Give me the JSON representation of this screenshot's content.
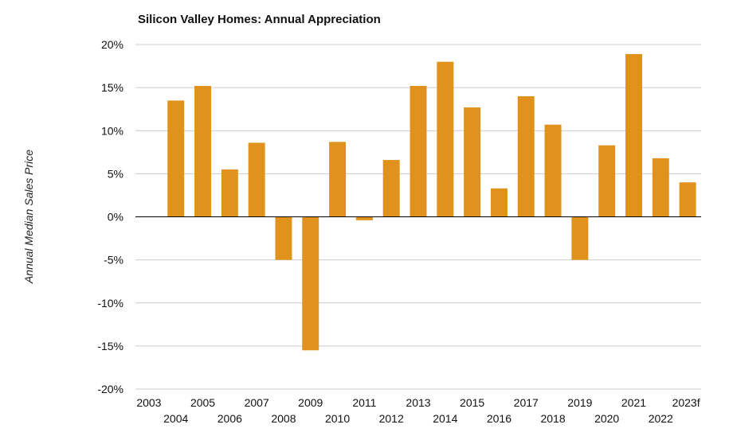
{
  "chart_data": {
    "type": "bar",
    "title": "Silicon Valley Homes: Annual Appreciation",
    "xlabel": "",
    "ylabel": "Annual Median Sales Price",
    "categories": [
      "2003",
      "2004",
      "2005",
      "2006",
      "2007",
      "2008",
      "2009",
      "2010",
      "2011",
      "2012",
      "2013",
      "2014",
      "2015",
      "2016",
      "2017",
      "2018",
      "2019",
      "2020",
      "2021",
      "2022",
      "2023f"
    ],
    "values": [
      0,
      13.5,
      15.2,
      5.5,
      8.6,
      -5.0,
      -15.5,
      8.7,
      -0.4,
      6.6,
      15.2,
      18.0,
      12.7,
      3.3,
      14.0,
      10.7,
      -5.0,
      8.3,
      18.9,
      6.8,
      4.0
    ],
    "ylim": [
      -20,
      20
    ],
    "yticks": [
      20,
      15,
      10,
      5,
      0,
      -5,
      -10,
      -15,
      -20
    ],
    "ytick_labels": [
      "20%",
      "15%",
      "10%",
      "5%",
      "0%",
      "-5%",
      "-10%",
      "-15%",
      "-20%"
    ],
    "grid": true,
    "legend": "none",
    "bar_color": "#e0921c"
  }
}
